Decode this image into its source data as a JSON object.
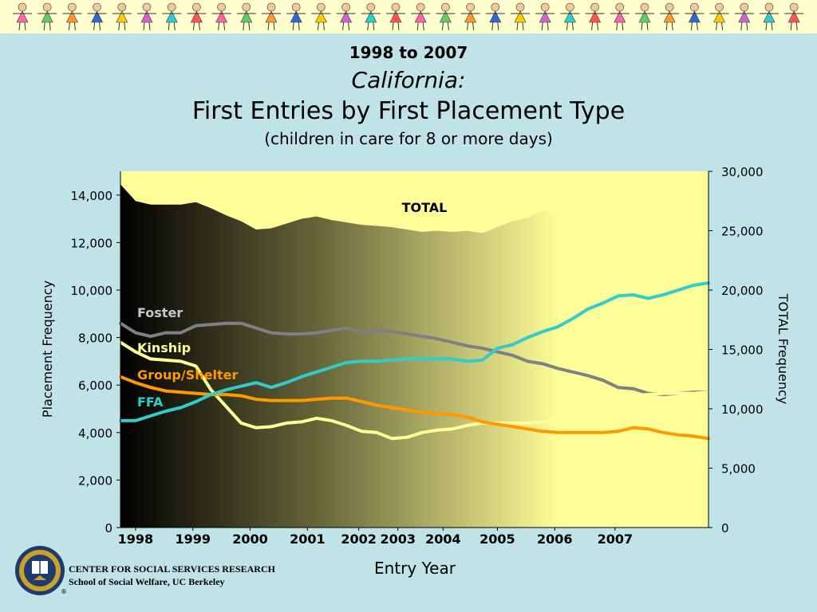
{
  "header": {
    "years": "1998 to 2007",
    "state": "California:",
    "title": "First Entries by First Placement Type",
    "subtitle": "(children in care for 8 or more days)"
  },
  "footer": {
    "org_line1": "CENTER FOR SOCIAL SERVICES RESEARCH",
    "org_line2": "School of Social Welfare, UC Berkeley",
    "registered": "®"
  },
  "colors": {
    "foster": "#7f7f86",
    "kinship": "#ffff99",
    "group": "#ff9900",
    "ffa": "#33cccc",
    "total_dark": "#000000",
    "total_light": "#ffff99",
    "header_bg": "#bfe3e6"
  },
  "chart_data": {
    "type": "line",
    "xlabel": "Entry Year",
    "ylabel": "Placement Frequency",
    "y2label": "TOTAL Frequency",
    "ylim": [
      0,
      15000
    ],
    "y2lim": [
      0,
      30000
    ],
    "yticks": [
      0,
      2000,
      4000,
      6000,
      8000,
      10000,
      12000,
      14000
    ],
    "ytick_labels": [
      "0",
      "2,000",
      "4,000",
      "6,000",
      "8,000",
      "10,000",
      "12,000",
      "14,000"
    ],
    "y2ticks": [
      0,
      5000,
      10000,
      15000,
      20000,
      25000,
      30000
    ],
    "y2tick_labels": [
      "0",
      "5,000",
      "10,000",
      "15,000",
      "20,000",
      "25,000",
      "30,000"
    ],
    "categories": [
      "1998",
      "1999",
      "2000",
      "2001",
      "2002",
      "2003",
      "2004",
      "2005",
      "2006",
      "2007"
    ],
    "x": [
      1998.0,
      1998.25,
      1998.5,
      1998.75,
      1999.0,
      1999.25,
      1999.5,
      1999.75,
      2000.0,
      2000.25,
      2000.5,
      2000.75,
      2001.0,
      2001.25,
      2001.5,
      2001.75,
      2002.0,
      2002.25,
      2002.5,
      2002.75,
      2003.0,
      2003.25,
      2003.5,
      2003.75,
      2004.0,
      2004.25,
      2004.5,
      2004.75,
      2005.0,
      2005.25,
      2005.5,
      2005.75,
      2006.0,
      2006.25,
      2006.5,
      2006.75,
      2007.0,
      2007.25,
      2007.5,
      2007.75
    ],
    "total_label": "TOTAL",
    "total": [
      28900,
      27500,
      27200,
      27200,
      27200,
      27400,
      26900,
      26300,
      25800,
      25100,
      25200,
      25600,
      26000,
      26200,
      25900,
      25700,
      25500,
      25400,
      25300,
      25100,
      24900,
      25000,
      24900,
      25000,
      24800,
      25300,
      25800,
      26100,
      26700,
      26400,
      26000,
      25900,
      26100,
      26400,
      26700,
      27200,
      26300,
      26400,
      26600,
      26700
    ],
    "series": [
      {
        "name": "Foster",
        "values": [
          8600,
          8200,
          8050,
          8200,
          8200,
          8500,
          8550,
          8600,
          8600,
          8400,
          8200,
          8150,
          8150,
          8200,
          8300,
          8400,
          8200,
          8300,
          8250,
          8150,
          8050,
          7950,
          7800,
          7650,
          7550,
          7400,
          7250,
          7000,
          6900,
          6700,
          6550,
          6400,
          6200,
          5900,
          5850,
          5650,
          5600,
          5650,
          5700,
          5700
        ]
      },
      {
        "name": "Kinship",
        "values": [
          7800,
          7400,
          7100,
          7050,
          7000,
          6800,
          5800,
          5100,
          4400,
          4200,
          4250,
          4400,
          4450,
          4600,
          4500,
          4300,
          4050,
          4000,
          3750,
          3800,
          4000,
          4100,
          4150,
          4300,
          4400,
          4400,
          4400,
          4400,
          4450,
          4500,
          4700,
          5000,
          5300,
          5500,
          5550,
          5600,
          5650,
          5650,
          5650,
          5700
        ]
      },
      {
        "name": "Group/Shelter",
        "values": [
          6350,
          6100,
          5900,
          5750,
          5700,
          5650,
          5600,
          5600,
          5550,
          5400,
          5350,
          5350,
          5350,
          5400,
          5450,
          5450,
          5300,
          5150,
          5050,
          4950,
          4850,
          4800,
          4750,
          4650,
          4450,
          4350,
          4250,
          4150,
          4050,
          4000,
          4000,
          4000,
          4000,
          4050,
          4200,
          4150,
          4000,
          3900,
          3850,
          3750
        ]
      },
      {
        "name": "FFA",
        "values": [
          4500,
          4500,
          4700,
          4900,
          5050,
          5300,
          5600,
          5800,
          5950,
          6100,
          5900,
          6100,
          6350,
          6550,
          6750,
          6950,
          7000,
          7000,
          7050,
          7100,
          7100,
          7100,
          7100,
          7000,
          7050,
          7550,
          7700,
          8000,
          8250,
          8450,
          8800,
          9200,
          9450,
          9750,
          9800,
          9650,
          9800,
          10000,
          10200,
          10300
        ]
      }
    ]
  }
}
